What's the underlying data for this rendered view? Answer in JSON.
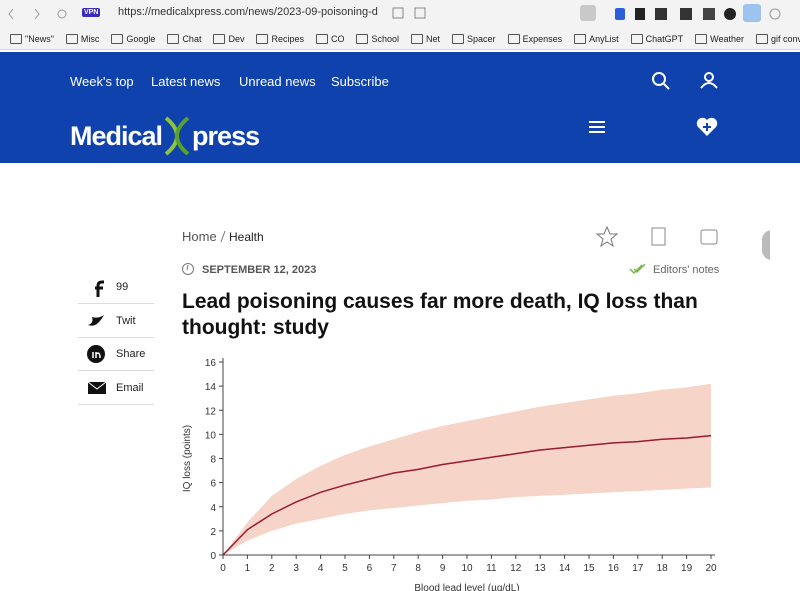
{
  "browser": {
    "vpn": "VPN",
    "url": "https://medicalxpress.com/news/2023-09-poisoning-d",
    "bookmarks": [
      "\"News\"",
      "Misc",
      "Google",
      "Chat",
      "Dev",
      "Recipes",
      "CO",
      "School",
      "Net",
      "Spacer",
      "Expenses",
      "AnyList",
      "ChatGPT",
      "Weather",
      "gif converter"
    ]
  },
  "site": {
    "nav": [
      "Week's top",
      "Latest news",
      "Unread news",
      "Subscribe"
    ],
    "logo": {
      "left": "Medical",
      "right": "press"
    }
  },
  "article": {
    "breadcrumb": [
      "Home",
      "Health"
    ],
    "date": "SEPTEMBER 12, 2023",
    "editors_notes": "Editors' notes",
    "title": "Lead poisoning causes far more death, IQ loss than thought: study",
    "share": [
      "99",
      "Twit",
      "Share",
      "Email"
    ]
  },
  "figure": {
    "type": "line",
    "y_label": "IQ loss (points)",
    "x_label": "Blood lead level (µg/dL)",
    "x": [
      0,
      1,
      2,
      3,
      4,
      5,
      6,
      7,
      8,
      9,
      10,
      11,
      12,
      13,
      14,
      15,
      16,
      17,
      18,
      19,
      20
    ],
    "mean": [
      0,
      2.1,
      3.4,
      4.4,
      5.2,
      5.8,
      6.3,
      6.8,
      7.1,
      7.5,
      7.8,
      8.1,
      8.4,
      8.7,
      8.9,
      9.1,
      9.3,
      9.4,
      9.6,
      9.7,
      9.9
    ],
    "upper": [
      0,
      2.7,
      4.9,
      6.3,
      7.4,
      8.3,
      9.0,
      9.6,
      10.2,
      10.7,
      11.1,
      11.5,
      11.9,
      12.3,
      12.6,
      12.9,
      13.2,
      13.4,
      13.7,
      13.9,
      14.2
    ],
    "lower": [
      0,
      1.2,
      2.0,
      2.6,
      3.0,
      3.4,
      3.7,
      3.9,
      4.1,
      4.3,
      4.5,
      4.6,
      4.8,
      4.9,
      5.0,
      5.1,
      5.2,
      5.3,
      5.4,
      5.5,
      5.6
    ],
    "line_color": "#9b1b30",
    "band_color": "#f7d4c8",
    "xlim": [
      0,
      20
    ],
    "ylim": [
      0,
      16
    ],
    "xticks": [
      0,
      1,
      2,
      3,
      4,
      5,
      6,
      7,
      8,
      9,
      10,
      11,
      12,
      13,
      14,
      15,
      16,
      17,
      18,
      19,
      20
    ],
    "yticks": [
      0,
      2,
      4,
      6,
      8,
      10,
      12,
      14,
      16
    ]
  }
}
